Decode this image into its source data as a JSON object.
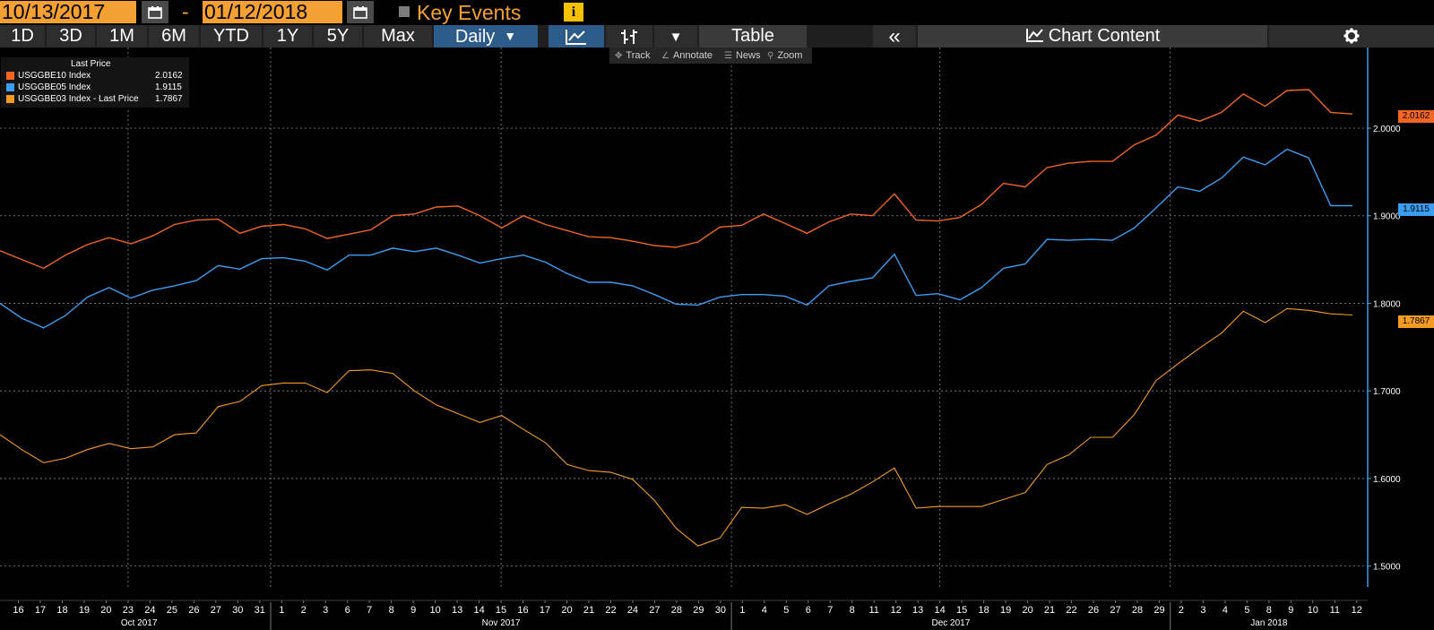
{
  "toolbar_top": {
    "start_date": "10/13/2017",
    "end_date": "01/12/2018",
    "separator": "-",
    "key_events_label": "Key Events",
    "info_icon": "i"
  },
  "toolbar": {
    "ranges": [
      "1D",
      "3D",
      "1M",
      "6M",
      "YTD",
      "1Y",
      "5Y",
      "Max"
    ],
    "frequency": "Daily",
    "table_label": "Table",
    "collapse_label": "«",
    "chart_content_label": "Chart Content"
  },
  "chart_tools": {
    "track": "Track",
    "annotate": "Annotate",
    "news": "News",
    "zoom": "Zoom"
  },
  "colors": {
    "be10": "#f26522",
    "be05": "#3b9df0",
    "be03": "#f59b23",
    "grid": "#8a8a8a",
    "axis": "#3b9df0"
  },
  "chart_data": {
    "type": "line",
    "title": "",
    "legend_title": "Last Price",
    "legend_position": "top-left",
    "grid": true,
    "y_axis_side": "right",
    "ylim": [
      1.4867,
      2.0911
    ],
    "yticks": [
      1.5,
      1.6,
      1.7,
      1.8,
      1.9,
      2.0
    ],
    "ytick_labels": [
      "1.5000",
      "1.6000",
      "1.7000",
      "1.8000",
      "1.9000",
      "2.0000"
    ],
    "x_tick_labels": [
      "16",
      "17",
      "18",
      "19",
      "20",
      "23",
      "24",
      "25",
      "26",
      "27",
      "30",
      "31",
      "1",
      "2",
      "3",
      "6",
      "7",
      "8",
      "9",
      "10",
      "13",
      "14",
      "15",
      "16",
      "17",
      "20",
      "21",
      "22",
      "24",
      "27",
      "28",
      "29",
      "30",
      "1",
      "4",
      "5",
      "6",
      "7",
      "8",
      "11",
      "12",
      "13",
      "14",
      "15",
      "18",
      "19",
      "20",
      "21",
      "22",
      "26",
      "27",
      "28",
      "29",
      "2",
      "3",
      "4",
      "5",
      "8",
      "9",
      "10",
      "11",
      "12"
    ],
    "month_labels": [
      {
        "label": "Oct 2017",
        "from": 0,
        "to": 11
      },
      {
        "label": "Nov 2017",
        "from": 12,
        "to": 32
      },
      {
        "label": "Dec 2017",
        "from": 33,
        "to": 52
      },
      {
        "label": "Jan 2018",
        "from": 53,
        "to": 61
      }
    ],
    "series": [
      {
        "name": "USGGBE10 Index",
        "last_value": "2.0162",
        "color": "#f26522",
        "values": [
          1.86,
          1.85,
          1.84,
          1.855,
          1.867,
          1.875,
          1.868,
          1.877,
          1.89,
          1.895,
          1.896,
          1.88,
          1.888,
          1.89,
          1.885,
          1.874,
          1.879,
          1.884,
          1.9,
          1.902,
          1.91,
          1.911,
          1.9,
          1.886,
          1.9,
          1.89,
          1.883,
          1.876,
          1.875,
          1.871,
          1.866,
          1.864,
          1.87,
          1.887,
          1.889,
          1.902,
          1.891,
          1.88,
          1.893,
          1.902,
          1.9,
          1.925,
          1.895,
          1.894,
          1.898,
          1.913,
          1.937,
          1.933,
          1.955,
          1.96,
          1.962,
          1.962,
          1.981,
          1.992,
          2.015,
          2.008,
          2.018,
          2.039,
          2.025,
          2.043,
          2.044,
          2.018,
          2.0162
        ]
      },
      {
        "name": "USGGBE05 Index",
        "last_value": "1.9115",
        "color": "#3b9df0",
        "values": [
          1.8,
          1.783,
          1.772,
          1.786,
          1.807,
          1.818,
          1.806,
          1.815,
          1.82,
          1.826,
          1.843,
          1.839,
          1.851,
          1.852,
          1.848,
          1.838,
          1.855,
          1.855,
          1.863,
          1.859,
          1.863,
          1.855,
          1.846,
          1.851,
          1.855,
          1.847,
          1.834,
          1.824,
          1.824,
          1.82,
          1.81,
          1.799,
          1.798,
          1.807,
          1.81,
          1.81,
          1.808,
          1.798,
          1.82,
          1.825,
          1.829,
          1.856,
          1.809,
          1.811,
          1.804,
          1.818,
          1.84,
          1.845,
          1.873,
          1.872,
          1.873,
          1.872,
          1.886,
          1.909,
          1.933,
          1.928,
          1.943,
          1.967,
          1.958,
          1.976,
          1.966,
          1.9115,
          1.9115
        ]
      },
      {
        "name": "USGGBE03 Index - Last Price",
        "last_value": "1.7867",
        "color": "#f59b23",
        "values": [
          1.65,
          1.633,
          1.618,
          1.623,
          1.633,
          1.64,
          1.634,
          1.636,
          1.65,
          1.652,
          1.682,
          1.688,
          1.706,
          1.709,
          1.709,
          1.698,
          1.723,
          1.724,
          1.72,
          1.7,
          1.684,
          1.674,
          1.664,
          1.672,
          1.656,
          1.641,
          1.616,
          1.609,
          1.607,
          1.599,
          1.575,
          1.543,
          1.523,
          1.532,
          1.567,
          1.566,
          1.57,
          1.559,
          1.571,
          1.582,
          1.596,
          1.612,
          1.566,
          1.568,
          1.568,
          1.568,
          1.576,
          1.584,
          1.616,
          1.627,
          1.647,
          1.647,
          1.673,
          1.712,
          1.731,
          1.749,
          1.766,
          1.791,
          1.778,
          1.794,
          1.792,
          1.788,
          1.7867
        ]
      }
    ]
  }
}
